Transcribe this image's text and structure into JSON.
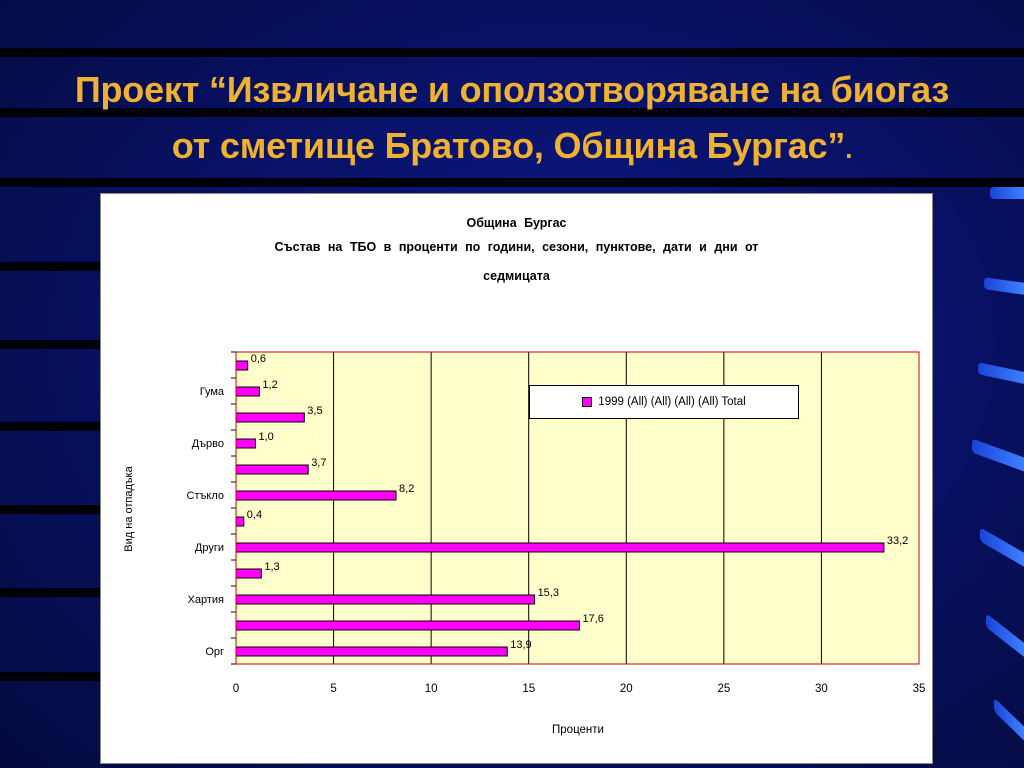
{
  "slide": {
    "title_line1": "Проект “Извличане и оползотворяване на биогаз",
    "title_line2": "от сметище Братово, Община Бургас”",
    "title_dot": "."
  },
  "chart_data": {
    "type": "bar",
    "orientation": "horizontal",
    "title": "Община  Бургас",
    "subtitle_line1": "Състав  на  ТБО  в  проценти  по  години,  сезони,  пунктове,  дати  и  дни  от",
    "subtitle_line2": "седмицата",
    "xlabel": "Проценти",
    "ylabel": "Вид на отпадъка",
    "xlim": [
      0,
      35
    ],
    "xticks": [
      "0",
      "5",
      "10",
      "15",
      "20",
      "25",
      "30",
      "35"
    ],
    "grid": "vertical",
    "legend_position": "top-right",
    "series": [
      {
        "name": "1999 (All) (All) (All) (All) Total",
        "color": "#ff00ff",
        "categories": [
          "",
          "Гума",
          "",
          "Дърво",
          "",
          "Стъкло",
          "",
          "Други",
          "",
          "Хартия",
          "",
          "Орг"
        ],
        "values": [
          0.6,
          1.2,
          3.5,
          1.0,
          3.7,
          8.2,
          0.4,
          33.2,
          1.3,
          15.3,
          17.6,
          13.9
        ],
        "value_labels": [
          "0,6",
          "1,2",
          "3,5",
          "1,0",
          "3,7",
          "8,2",
          "0,4",
          "33,2",
          "1,3",
          "15,3",
          "17,6",
          "13,9"
        ]
      }
    ],
    "plot_background": "#ffffcc",
    "plot_border": "#cc0000"
  }
}
